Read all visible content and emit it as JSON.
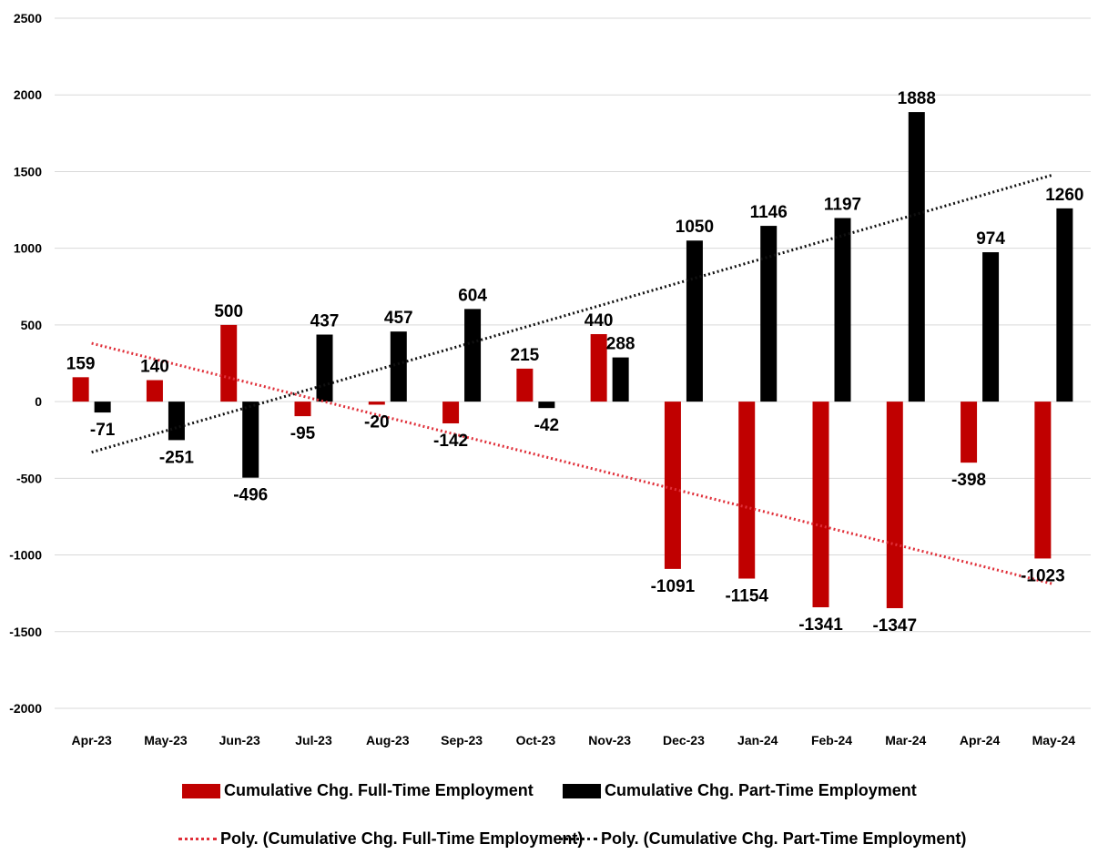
{
  "chart_data": {
    "type": "bar",
    "categories": [
      "Apr-23",
      "May-23",
      "Jun-23",
      "Jul-23",
      "Aug-23",
      "Sep-23",
      "Oct-23",
      "Nov-23",
      "Dec-23",
      "Jan-24",
      "Feb-24",
      "Mar-24",
      "Apr-24",
      "May-24"
    ],
    "series": [
      {
        "name": "Cumulative Chg. Full-Time Employment",
        "color": "#c00000",
        "values": [
          159,
          140,
          500,
          -95,
          -20,
          -142,
          215,
          440,
          -1091,
          -1154,
          -1341,
          -1347,
          -398,
          -1023
        ]
      },
      {
        "name": "Cumulative Chg. Part-Time Employment",
        "color": "#000000",
        "values": [
          -71,
          -251,
          -496,
          437,
          457,
          604,
          -42,
          288,
          1050,
          1146,
          1197,
          1888,
          974,
          1260
        ]
      }
    ],
    "trendlines": [
      {
        "name": "Poly. (Cumulative Chg. Full-Time Employment)",
        "color": "#e0303a",
        "start": 380,
        "end": -1190
      },
      {
        "name": "Poly. (Cumulative Chg. Part-Time Employment)",
        "color": "#111111",
        "start": -330,
        "end": 1480
      }
    ],
    "ylim": [
      -2000,
      2500
    ],
    "yticks": [
      -2000,
      -1500,
      -1000,
      -500,
      0,
      500,
      1000,
      1500,
      2000,
      2500
    ],
    "grid": true,
    "legend_position": "bottom",
    "data_labels": true
  }
}
